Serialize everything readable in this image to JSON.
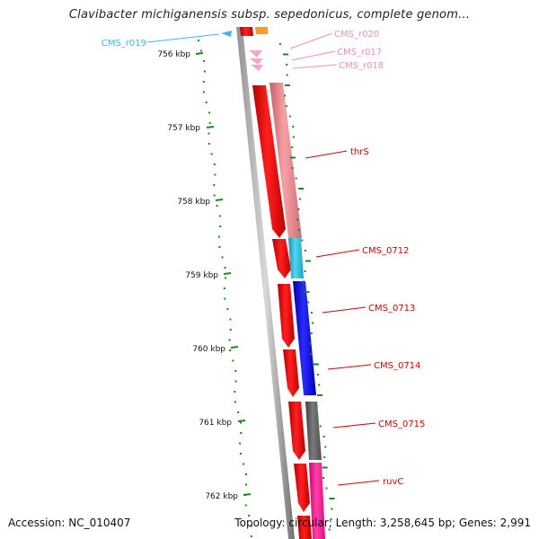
{
  "title": "Clavibacter michiganensis subsp. sepedonicus, complete genom...",
  "footer": {
    "accession": "Accession: NC_010407",
    "summary": "Topology: circular; Length: 3,258,645 bp; Genes: 2,991"
  },
  "ruler": {
    "ticks": [
      "756 kbp",
      "757 kbp",
      "758 kbp",
      "759 kbp",
      "760 kbp",
      "761 kbp",
      "762 kbp"
    ]
  },
  "features": {
    "CMS_r019": {
      "label": "CMS_r019",
      "color": "#3cb8e8"
    },
    "CMS_r020": {
      "label": "CMS_r020",
      "color": "#f28fb8"
    },
    "CMS_r017": {
      "label": "CMS_r017",
      "color": "#f28fb8"
    },
    "CMS_r018": {
      "label": "CMS_r018",
      "color": "#f28fb8"
    },
    "thrS": {
      "label": "thrS",
      "color": "#e8808a"
    },
    "CMS_0712": {
      "label": "CMS_0712",
      "color": "#30c0d8"
    },
    "CMS_0713": {
      "label": "CMS_0713",
      "color": "#1010e8"
    },
    "CMS_0714": {
      "label": "CMS_0714",
      "color": "#1010e8"
    },
    "CMS_0715": {
      "label": "CMS_0715",
      "color": "#606060"
    },
    "ruvC": {
      "label": "ruvC",
      "color": "#ff1493"
    }
  },
  "colors": {
    "cds_forward": "#ff0000",
    "backbone": "#808080",
    "gc_dots": "#1a8a1a",
    "label_red": "#d00000"
  }
}
